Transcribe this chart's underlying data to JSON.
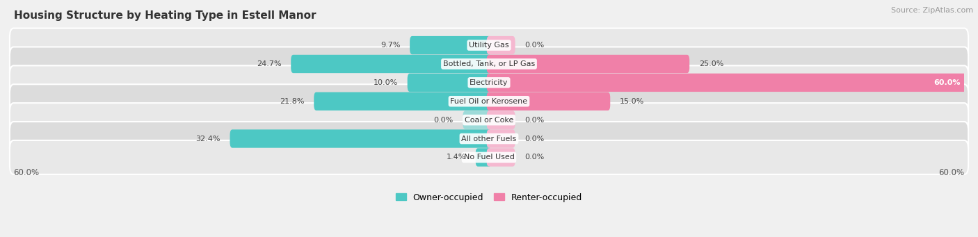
{
  "title": "Housing Structure by Heating Type in Estell Manor",
  "source": "Source: ZipAtlas.com",
  "categories": [
    "Utility Gas",
    "Bottled, Tank, or LP Gas",
    "Electricity",
    "Fuel Oil or Kerosene",
    "Coal or Coke",
    "All other Fuels",
    "No Fuel Used"
  ],
  "owner_values": [
    9.7,
    24.7,
    10.0,
    21.8,
    0.0,
    32.4,
    1.4
  ],
  "renter_values": [
    0.0,
    25.0,
    60.0,
    15.0,
    0.0,
    0.0,
    0.0
  ],
  "owner_color": "#4DC8C4",
  "owner_color_light": "#9DDBD9",
  "renter_color": "#F080A8",
  "renter_color_light": "#F5B8D0",
  "owner_label": "Owner-occupied",
  "renter_label": "Renter-occupied",
  "xlim_val": 60,
  "left_label": "60.0%",
  "right_label": "60.0%",
  "background_color": "#f0f0f0",
  "row_bg_color_odd": "#e8e8e8",
  "row_bg_color_even": "#dcdcdc",
  "title_fontsize": 11,
  "source_fontsize": 8,
  "cat_fontsize": 8,
  "pct_fontsize": 8,
  "legend_fontsize": 9
}
